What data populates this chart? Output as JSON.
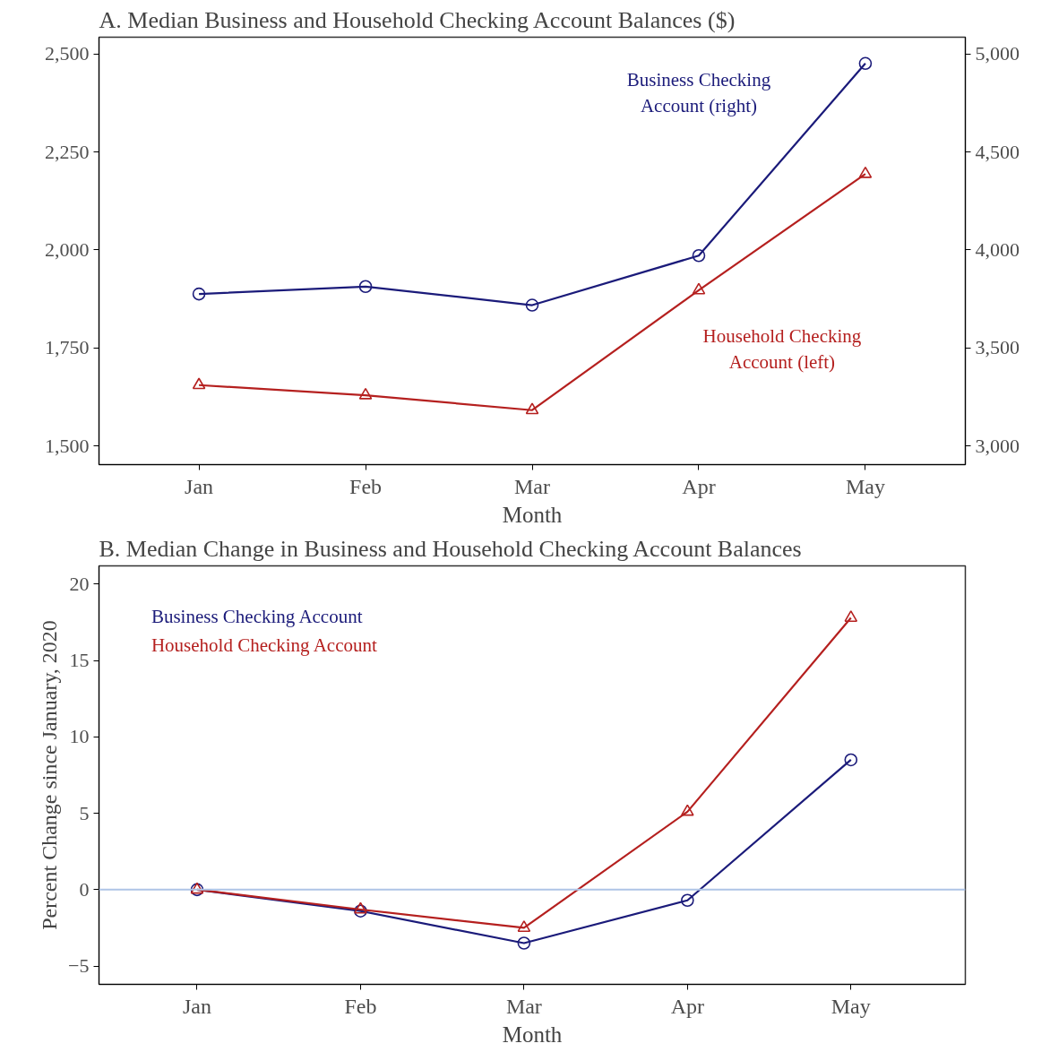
{
  "chart_data": [
    {
      "type": "line",
      "title": "A. Median Business and Household Checking Account Balances ($)",
      "xlabel": "Month",
      "categories": [
        "Jan",
        "Feb",
        "Mar",
        "Apr",
        "May"
      ],
      "series": [
        {
          "name": "Business Checking Account (right)",
          "color": "#1b1b7a",
          "marker": "circle",
          "axis": "y2",
          "values": [
            3775,
            3813,
            3718,
            3971,
            4952
          ]
        },
        {
          "name": "Household Checking Account (left)",
          "color": "#b5201f",
          "marker": "triangle",
          "values": [
            1655,
            1629,
            1591,
            1897,
            2194
          ]
        }
      ],
      "ylim": [
        1452,
        2543
      ],
      "yticks": [
        {
          "value": 1500,
          "label": "1,500"
        },
        {
          "value": 1750,
          "label": "1,750"
        },
        {
          "value": 2000,
          "label": "2,000"
        },
        {
          "value": 2250,
          "label": "2,250"
        },
        {
          "value": 2500,
          "label": "2,500"
        }
      ],
      "y2lim": [
        2904,
        5086
      ],
      "y2ticks": [
        {
          "value": 3000,
          "label": "3,000"
        },
        {
          "value": 3500,
          "label": "3,500"
        },
        {
          "value": 4000,
          "label": "4,000"
        },
        {
          "value": 4500,
          "label": "4,500"
        },
        {
          "value": 5000,
          "label": "5,000"
        }
      ],
      "grid": false,
      "line_style": "solid"
    },
    {
      "type": "line",
      "title": "B. Median Change in Business and Household Checking Account Balances",
      "xlabel": "Month",
      "ylabel": "Percent Change since January, 2020",
      "categories": [
        "Jan",
        "Feb",
        "Mar",
        "Apr",
        "May"
      ],
      "series": [
        {
          "name": "Business Checking Account",
          "color": "#1b1b7a",
          "marker": "circle",
          "values": [
            0,
            -1.4,
            -3.5,
            -0.7,
            8.5
          ]
        },
        {
          "name": "Household Checking Account",
          "color": "#b5201f",
          "marker": "triangle",
          "values": [
            0,
            -1.3,
            -2.5,
            5.1,
            17.8
          ]
        }
      ],
      "ylim": [
        -6.2,
        21.2
      ],
      "yticks": [
        {
          "value": -5,
          "label": "−5"
        },
        0,
        5,
        10,
        15,
        20
      ],
      "ref_lines": [
        {
          "axis": "y",
          "value": 0,
          "color": "#aec4e6"
        }
      ],
      "grid": false,
      "line_style": "solid"
    }
  ]
}
